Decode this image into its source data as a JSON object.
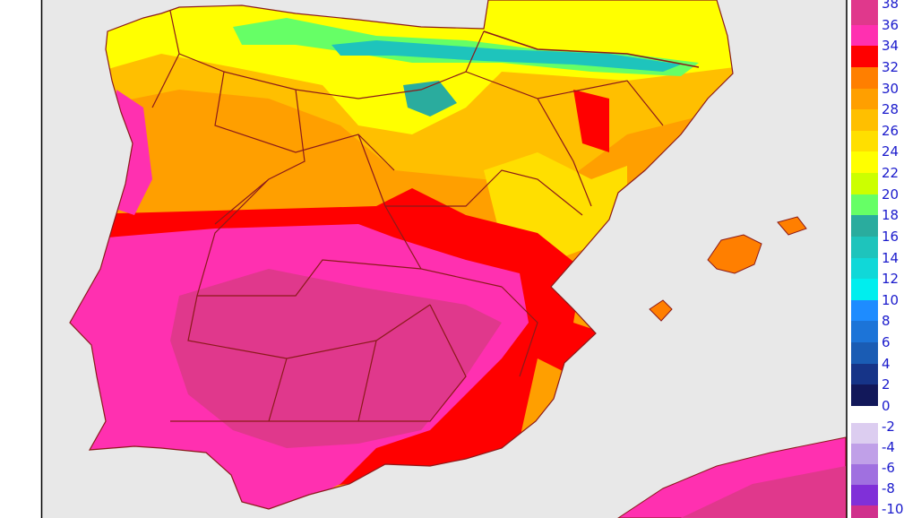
{
  "legend": {
    "labels": [
      "38",
      "36",
      "34",
      "32",
      "30",
      "28",
      "26",
      "24",
      "22",
      "20",
      "18",
      "16",
      "14",
      "12",
      "10",
      "8",
      "6",
      "4",
      "2",
      "0",
      "-2",
      "-4",
      "-6",
      "-8",
      "-10"
    ],
    "colors_positive": [
      "#e0388c",
      "#ff30b0",
      "#ff0000",
      "#ff7f00",
      "#ff9f00",
      "#ffbf00",
      "#ffdf00",
      "#ffff00",
      "#ccff00",
      "#66ff66",
      "#2aac9e",
      "#1ec4bc",
      "#10d8d8",
      "#00eeee",
      "#1e8cff",
      "#1c74d8",
      "#1a5cb4",
      "#163488",
      "#12185a"
    ],
    "colors_negative": [
      "#dccdf0",
      "#c0a0e8",
      "#a070e0",
      "#8030d8",
      "#d0308c"
    ]
  },
  "map": {
    "sea_color": "#e8e8e8",
    "border_color": "#8b1a1a"
  }
}
